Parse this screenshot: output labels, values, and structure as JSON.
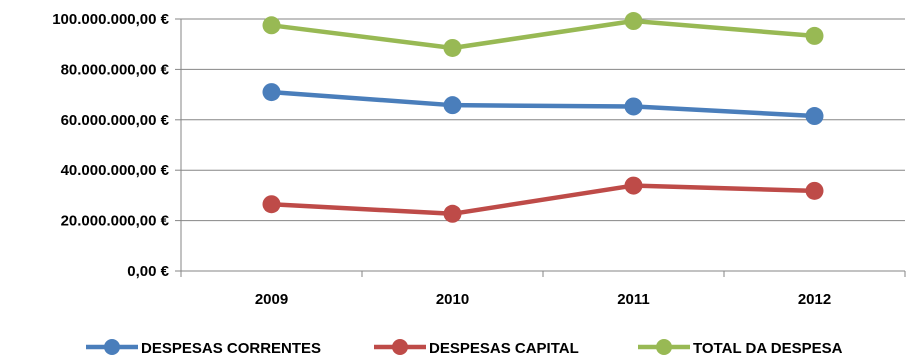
{
  "chart_data": {
    "type": "line",
    "categories": [
      "2009",
      "2010",
      "2011",
      "2012"
    ],
    "series": [
      {
        "name": "DESPESAS CORRENTES",
        "color": "#4a7ebb",
        "values": [
          71000000,
          65800000,
          65300000,
          61500000
        ]
      },
      {
        "name": "DESPESAS CAPITAL",
        "color": "#be4b48",
        "values": [
          26500000,
          22700000,
          33900000,
          31800000
        ]
      },
      {
        "name": "TOTAL DA DESPESA",
        "color": "#98b954",
        "values": [
          97500000,
          88500000,
          99200000,
          93300000
        ]
      }
    ],
    "yticks": [
      0,
      20000000,
      40000000,
      60000000,
      80000000,
      100000000
    ],
    "ytick_labels": [
      "0,00 €",
      "20.000.000,00 €",
      "40.000.000,00 €",
      "60.000.000,00 €",
      "80.000.000,00 €",
      "100.000.000,00 €"
    ],
    "ylim": [
      0,
      100000000
    ],
    "grid": true,
    "legend_position": "bottom"
  }
}
